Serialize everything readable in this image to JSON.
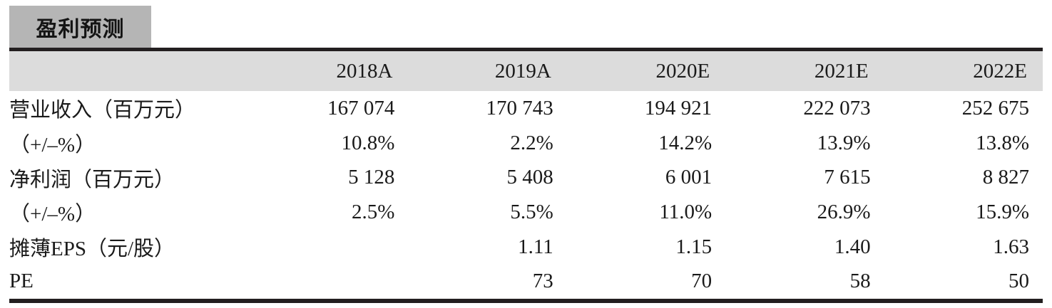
{
  "title": "盈利预测",
  "table": {
    "columns": [
      "",
      "2018A",
      "2019A",
      "2020E",
      "2021E",
      "2022E"
    ],
    "rows": [
      {
        "label": "营业收入（百万元）",
        "values": [
          "167 074",
          "170 743",
          "194 921",
          "222 073",
          "252 675"
        ]
      },
      {
        "label": "（+/–%）",
        "values": [
          "10.8%",
          "2.2%",
          "14.2%",
          "13.9%",
          "13.8%"
        ]
      },
      {
        "label": "净利润（百万元）",
        "values": [
          "5 128",
          "5 408",
          "6 001",
          "7 615",
          "8 827"
        ]
      },
      {
        "label": "（+/–%）",
        "values": [
          "2.5%",
          "5.5%",
          "11.0%",
          "26.9%",
          "15.9%"
        ]
      },
      {
        "label": "摊薄EPS（元/股）",
        "values": [
          "",
          "1.11",
          "1.15",
          "1.40",
          "1.63"
        ]
      },
      {
        "label": "PE",
        "values": [
          "",
          "73",
          "70",
          "58",
          "50"
        ]
      }
    ]
  },
  "chart_data": {
    "type": "table",
    "title": "盈利预测",
    "categories": [
      "2018A",
      "2019A",
      "2020E",
      "2021E",
      "2022E"
    ],
    "series": [
      {
        "name": "营业收入（百万元）",
        "values": [
          167074,
          170743,
          194921,
          222073,
          252675
        ]
      },
      {
        "name": "营业收入（+/–%）",
        "values": [
          10.8,
          2.2,
          14.2,
          13.9,
          13.8
        ]
      },
      {
        "name": "净利润（百万元）",
        "values": [
          5128,
          5408,
          6001,
          7615,
          8827
        ]
      },
      {
        "name": "净利润（+/–%）",
        "values": [
          2.5,
          5.5,
          11.0,
          26.9,
          15.9
        ]
      },
      {
        "name": "摊薄EPS（元/股）",
        "values": [
          null,
          1.11,
          1.15,
          1.4,
          1.63
        ]
      },
      {
        "name": "PE",
        "values": [
          null,
          73,
          70,
          58,
          50
        ]
      }
    ]
  },
  "colors": {
    "title_box_bg": "#b5b5b5",
    "header_band_bg": "#dcdcdc",
    "rule": "#231f20",
    "text": "#1a1a1a",
    "page_bg": "#ffffff"
  }
}
